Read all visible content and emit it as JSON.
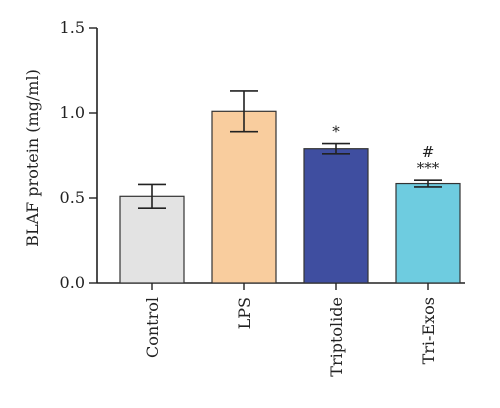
{
  "chart_data": {
    "type": "bar",
    "title": "",
    "xlabel": "",
    "ylabel": "BLAF protein (mg/ml)",
    "ylim": [
      0,
      1.5
    ],
    "yticks": [
      "0.0",
      "0.5",
      "1.0",
      "1.5"
    ],
    "categories": [
      "Control",
      "LPS",
      "Triptolide",
      "Tri-Exos"
    ],
    "values": [
      0.51,
      1.01,
      0.79,
      0.585
    ],
    "errors": [
      0.07,
      0.12,
      0.03,
      0.02
    ],
    "colors": [
      "#e3e3e3",
      "#f9cd9e",
      "#3f4ea0",
      "#6ecce0"
    ],
    "annotations": [
      {
        "category": "Triptolide",
        "lines": [
          "*"
        ]
      },
      {
        "category": "Tri-Exos",
        "lines": [
          "#",
          "***"
        ]
      }
    ],
    "grid": false,
    "legend": "none"
  }
}
